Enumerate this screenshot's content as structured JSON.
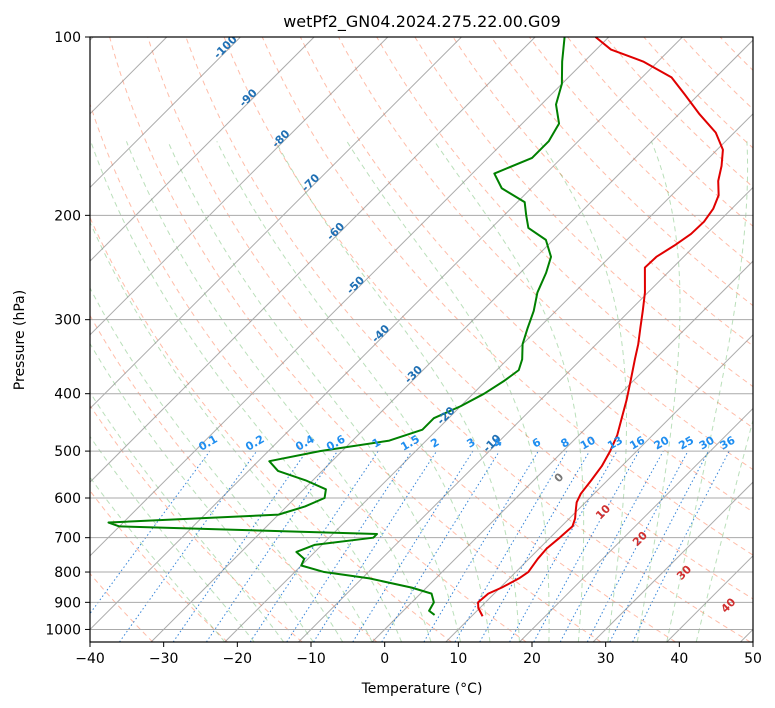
{
  "chart_data": {
    "type": "skew-t",
    "title": "wetPf2_GN04.2024.275.22.00.G09",
    "xlabel": "Temperature (°C)",
    "ylabel": "Pressure (hPa)",
    "xlim": [
      -40,
      50
    ],
    "ylim": [
      1050,
      100
    ],
    "y_scale": "log",
    "grid": true,
    "x_ticks": [
      "−40",
      "−30",
      "−20",
      "−10",
      "0",
      "10",
      "20",
      "30",
      "40",
      "50"
    ],
    "y_ticks": [
      "100",
      "200",
      "300",
      "400",
      "500",
      "600",
      "700",
      "800",
      "900",
      "1000"
    ],
    "isotherm_labels": [
      "-100",
      "-90",
      "-80",
      "-70",
      "-60",
      "-50",
      "-40",
      "-30",
      "-20",
      "-10"
    ],
    "mixing_ratio_labels": [
      "0.1",
      "0.2",
      "0.4",
      "0.6",
      "1",
      "1.5",
      "2",
      "3",
      "4",
      "6",
      "8",
      "10",
      "13",
      "16",
      "20",
      "25",
      "30",
      "36"
    ],
    "moist_adiabat_labels": [
      "0",
      "10",
      "20",
      "30",
      "40"
    ],
    "series": [
      {
        "color": "#e00000",
        "data": [
          [
            950,
            11.5
          ],
          [
            920,
            9.8
          ],
          [
            900,
            9
          ],
          [
            870,
            9.2
          ],
          [
            850,
            10.2
          ],
          [
            820,
            11.3
          ],
          [
            800,
            11.7
          ],
          [
            760,
            11.2
          ],
          [
            730,
            11
          ],
          [
            700,
            11.3
          ],
          [
            670,
            11.5
          ],
          [
            650,
            10.8
          ],
          [
            630,
            9.8
          ],
          [
            610,
            8.8
          ],
          [
            590,
            8.2
          ],
          [
            560,
            7.8
          ],
          [
            530,
            7.3
          ],
          [
            500,
            6.4
          ],
          [
            470,
            5.2
          ],
          [
            440,
            3.5
          ],
          [
            410,
            1.7
          ],
          [
            380,
            -0.4
          ],
          [
            350,
            -2.7
          ],
          [
            330,
            -4.3
          ],
          [
            310,
            -6.2
          ],
          [
            290,
            -8.2
          ],
          [
            270,
            -10.4
          ],
          [
            255,
            -12.4
          ],
          [
            245,
            -13.8
          ],
          [
            235,
            -13.7
          ],
          [
            225,
            -12.8
          ],
          [
            215,
            -12.1
          ],
          [
            205,
            -12.0
          ],
          [
            195,
            -12.5
          ],
          [
            185,
            -13.6
          ],
          [
            175,
            -15.6
          ],
          [
            165,
            -17.2
          ],
          [
            155,
            -19.2
          ],
          [
            145,
            -22.5
          ],
          [
            135,
            -27.2
          ],
          [
            125,
            -31.9
          ],
          [
            117,
            -36
          ],
          [
            110,
            -42
          ],
          [
            105,
            -48
          ],
          [
            100,
            -51.8
          ]
        ]
      },
      {
        "color": "#008000",
        "data": [
          [
            945,
            4.8
          ],
          [
            930,
            3.5
          ],
          [
            900,
            3
          ],
          [
            870,
            1.5
          ],
          [
            850,
            -2
          ],
          [
            820,
            -9
          ],
          [
            800,
            -16
          ],
          [
            780,
            -20
          ],
          [
            760,
            -20.5
          ],
          [
            740,
            -22.5
          ],
          [
            720,
            -21
          ],
          [
            700,
            -14
          ],
          [
            690,
            -14
          ],
          [
            670,
            -50
          ],
          [
            660,
            -52
          ],
          [
            640,
            -30
          ],
          [
            620,
            -27.5
          ],
          [
            600,
            -26
          ],
          [
            580,
            -27
          ],
          [
            560,
            -31
          ],
          [
            540,
            -36
          ],
          [
            520,
            -38.5
          ],
          [
            500,
            -33
          ],
          [
            480,
            -25
          ],
          [
            460,
            -22
          ],
          [
            440,
            -22
          ],
          [
            420,
            -20
          ],
          [
            400,
            -18.5
          ],
          [
            380,
            -17.5
          ],
          [
            365,
            -17
          ],
          [
            350,
            -18
          ],
          [
            330,
            -20
          ],
          [
            310,
            -21.5
          ],
          [
            290,
            -23
          ],
          [
            270,
            -25
          ],
          [
            250,
            -26.5
          ],
          [
            235,
            -28
          ],
          [
            220,
            -31
          ],
          [
            210,
            -35
          ],
          [
            200,
            -37
          ],
          [
            190,
            -39
          ],
          [
            180,
            -44
          ],
          [
            170,
            -47
          ],
          [
            160,
            -44
          ],
          [
            150,
            -44
          ],
          [
            140,
            -45
          ],
          [
            130,
            -48
          ],
          [
            120,
            -50
          ],
          [
            110,
            -53
          ],
          [
            100,
            -56
          ]
        ]
      }
    ]
  }
}
